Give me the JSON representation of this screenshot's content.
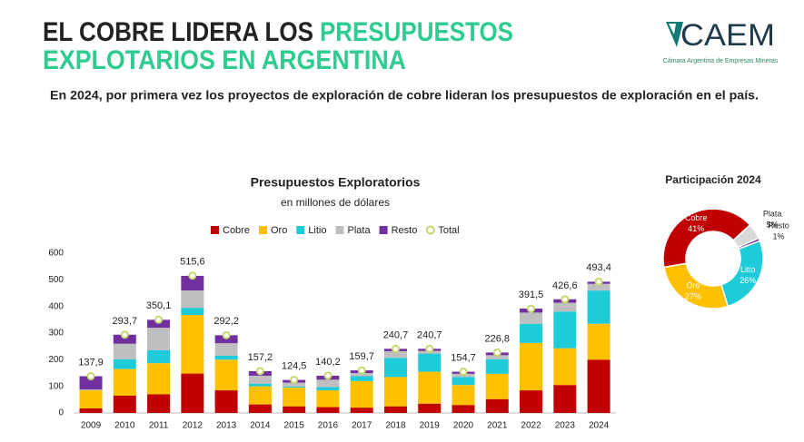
{
  "header": {
    "title": [
      "EL COBRE LIDERA LOS",
      "PRESUPUESTOS",
      "EXPLOTARIOS EN ARGENTINA"
    ],
    "subtitle": "En 2024, por primera vez los proyectos de exploración de cobre lideran los presupuestos de exploración en el país."
  },
  "logo": {
    "name": "CAEM",
    "tagline": "Cámara Argentina de Empresas Mineras"
  },
  "chart_data": [
    {
      "type": "bar",
      "stacked": true,
      "title": "Presupuestos Exploratorios",
      "subtitle": "en millones de dólares",
      "categories": [
        "2009",
        "2010",
        "2011",
        "2012",
        "2013",
        "2014",
        "2015",
        "2016",
        "2017",
        "2018",
        "2019",
        "2020",
        "2021",
        "2022",
        "2023",
        "2024"
      ],
      "series": [
        {
          "name": "Cobre",
          "color": "#c00000",
          "values": [
            17,
            65,
            70,
            148,
            85,
            32,
            25,
            22,
            20,
            25,
            35,
            30,
            52,
            85,
            105,
            200
          ]
        },
        {
          "name": "Oro",
          "color": "#ffc000",
          "values": [
            68,
            100,
            117,
            220,
            115,
            68,
            70,
            63,
            100,
            110,
            120,
            75,
            95,
            178,
            138,
            135
          ]
        },
        {
          "name": "Litio",
          "color": "#1ecbd8",
          "values": [
            0,
            37,
            49,
            27,
            15,
            10,
            4,
            12,
            18,
            72,
            68,
            30,
            55,
            72,
            138,
            125
          ]
        },
        {
          "name": "Plata",
          "color": "#bfbfbf",
          "values": [
            3,
            58,
            84,
            65,
            47,
            30,
            15,
            28,
            12,
            25,
            10,
            12,
            15,
            42,
            33,
            25
          ]
        },
        {
          "name": "Resto",
          "color": "#7030a0",
          "values": [
            50,
            34,
            30,
            55,
            30,
            17,
            10,
            15,
            10,
            9,
            8,
            8,
            10,
            15,
            13,
            8
          ]
        }
      ],
      "totals": {
        "name": "Total",
        "color": "#c5d86d",
        "values": [
          137.9,
          293.7,
          350.1,
          515.6,
          292.2,
          157.2,
          124.5,
          140.2,
          159.7,
          240.7,
          240.7,
          154.7,
          226.8,
          391.5,
          426.6,
          493.4
        ],
        "value_labels": [
          "137,9",
          "293,7",
          "350,1",
          "515,6",
          "292,2",
          "157,2",
          "124,5",
          "140,2",
          "159,7",
          "240,7",
          "240,7",
          "154,7",
          "226,8",
          "391,5",
          "426,6",
          "493,4"
        ]
      },
      "ylim": [
        0,
        600
      ],
      "yticks": [
        0,
        100,
        200,
        300,
        400,
        500,
        600
      ],
      "grid": false,
      "legend": "top"
    },
    {
      "type": "pie",
      "donut": true,
      "title": "Participación 2024",
      "categories": [
        "Cobre",
        "Plata",
        "Resto",
        "Litio",
        "Oro"
      ],
      "values": [
        41,
        5,
        1,
        26,
        27
      ],
      "value_labels": [
        "41%",
        "5%",
        "1%",
        "26%",
        "27%"
      ],
      "colors": [
        "#c00000",
        "#d9d9d9",
        "#7030a0",
        "#1ecbd8",
        "#ffc000"
      ]
    }
  ]
}
